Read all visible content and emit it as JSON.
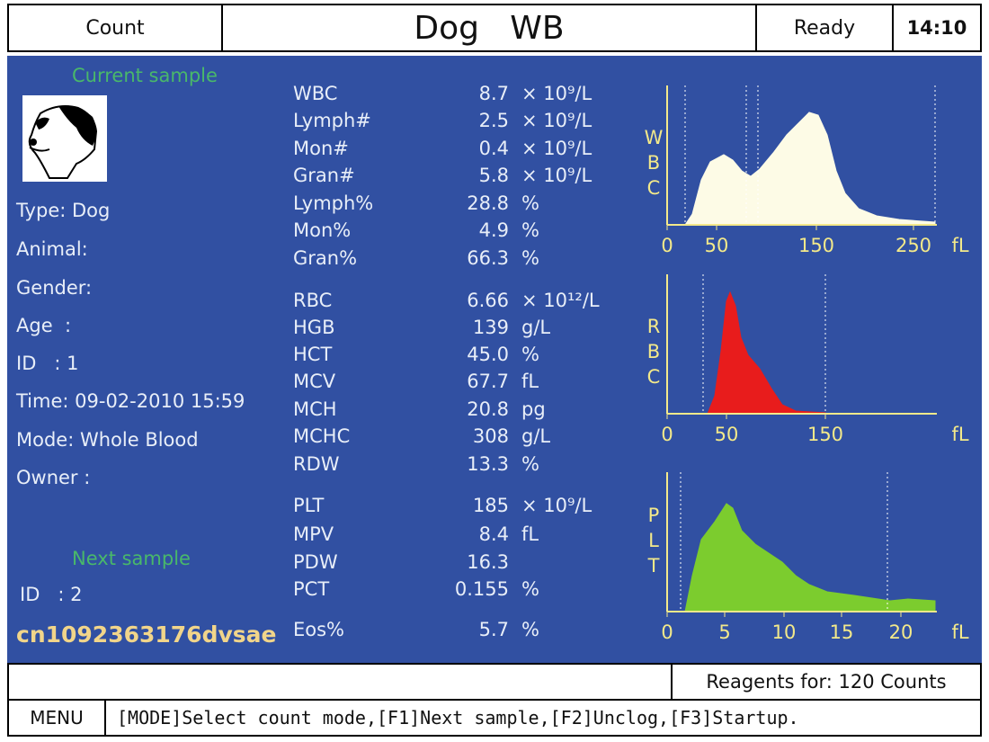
{
  "header": {
    "mode": "Count",
    "title": "Dog   WB",
    "status": "Ready",
    "time": "14:10"
  },
  "sample": {
    "current_label": "Current sample",
    "type": "Type: Dog",
    "animal": "Animal:",
    "gender": "Gender:",
    "age": "Age  :",
    "id": "ID   : 1",
    "time": "Time: 09-02-2010 15:59",
    "mode": "Mode: Whole Blood",
    "owner": "Owner :",
    "next_label": "Next sample",
    "next_id": "ID   : 2"
  },
  "results": [
    {
      "name": "WBC",
      "value": "8.7",
      "unit": "× 10⁹/L"
    },
    {
      "name": "Lymph#",
      "value": "2.5",
      "unit": "× 10⁹/L"
    },
    {
      "name": "Mon#",
      "value": "0.4",
      "unit": "× 10⁹/L"
    },
    {
      "name": "Gran#",
      "value": "5.8",
      "unit": "× 10⁹/L"
    },
    {
      "name": "Lymph%",
      "value": "28.8",
      "unit": "%"
    },
    {
      "name": "Mon%",
      "value": "4.9",
      "unit": "%"
    },
    {
      "name": "Gran%",
      "value": "66.3",
      "unit": "%"
    },
    {
      "name": "RBC",
      "value": "6.66",
      "unit": "× 10¹²/L"
    },
    {
      "name": "HGB",
      "value": "139",
      "unit": "g/L"
    },
    {
      "name": "HCT",
      "value": "45.0",
      "unit": "%"
    },
    {
      "name": "MCV",
      "value": "67.7",
      "unit": "fL"
    },
    {
      "name": "MCH",
      "value": "20.8",
      "unit": "pg"
    },
    {
      "name": "MCHC",
      "value": "308",
      "unit": "g/L"
    },
    {
      "name": "RDW",
      "value": "13.3",
      "unit": "%"
    },
    {
      "name": "PLT",
      "value": "185",
      "unit": "× 10⁹/L"
    },
    {
      "name": "MPV",
      "value": "8.4",
      "unit": "fL"
    },
    {
      "name": "PDW",
      "value": "16.3",
      "unit": ""
    },
    {
      "name": "PCT",
      "value": "0.155",
      "unit": "%"
    },
    {
      "name": "Eos%",
      "value": "5.7",
      "unit": "%"
    }
  ],
  "histograms": [
    {
      "label": [
        "W",
        "B",
        "C"
      ],
      "ticks": [
        "0",
        "50",
        "150",
        "250"
      ],
      "unit": "fL",
      "color": "#fdfbe6"
    },
    {
      "label": [
        "R",
        "B",
        "C"
      ],
      "ticks": [
        "0",
        "50",
        "150"
      ],
      "unit": "fL",
      "color": "#e81c1c"
    },
    {
      "label": [
        "P",
        "L",
        "T"
      ],
      "ticks": [
        "0",
        "5",
        "10",
        "15",
        "20"
      ],
      "unit": "fL",
      "color": "#7ccc2e"
    }
  ],
  "footer": {
    "reagents": "Reagents for:  120 Counts",
    "menu": "MENU",
    "hint": "[MODE]Select count mode,[F1]Next sample,[F2]Unclog,[F3]Startup."
  },
  "watermark": "cn1092363176dvsae"
}
